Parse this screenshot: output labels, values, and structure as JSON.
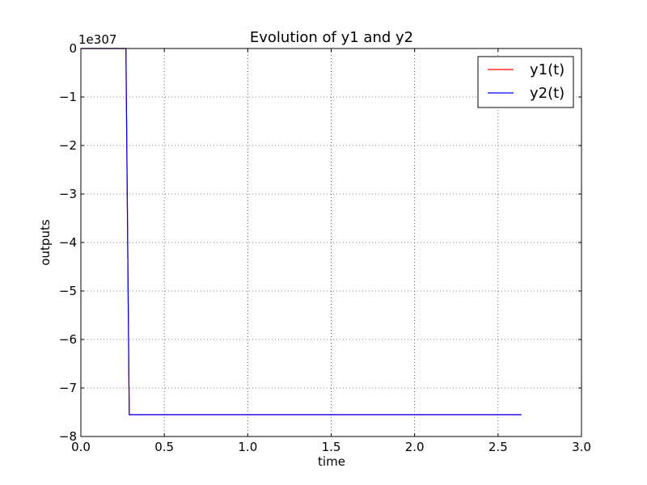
{
  "chart_data": {
    "type": "line",
    "title": "Evolution of y1 and y2",
    "xlabel": "time",
    "ylabel": "outputs",
    "y_offset_label": "1e307",
    "xlim": [
      0.0,
      3.0
    ],
    "ylim": [
      -8,
      0
    ],
    "x_ticks": [
      0.0,
      0.5,
      1.0,
      1.5,
      2.0,
      2.5,
      3.0
    ],
    "x_tick_labels": [
      "0.0",
      "0.5",
      "1.0",
      "1.5",
      "2.0",
      "2.5",
      "3.0"
    ],
    "y_ticks": [
      0,
      -1,
      -2,
      -3,
      -4,
      -5,
      -6,
      -7,
      -8
    ],
    "y_tick_labels": [
      "0",
      "−1",
      "−2",
      "−3",
      "−4",
      "−5",
      "−6",
      "−7",
      "−8"
    ],
    "grid": true,
    "legend_position": "top-right",
    "series": [
      {
        "name": "y1(t)",
        "color": "#ff0000",
        "x": [
          0.0,
          0.27,
          0.29,
          2.64
        ],
        "y": [
          0.0,
          0.0,
          -7.55,
          -7.55
        ]
      },
      {
        "name": "y2(t)",
        "color": "#0000ff",
        "x": [
          0.0,
          0.27,
          0.29,
          2.64
        ],
        "y": [
          0.0,
          0.0,
          -7.55,
          -7.55
        ]
      }
    ]
  }
}
